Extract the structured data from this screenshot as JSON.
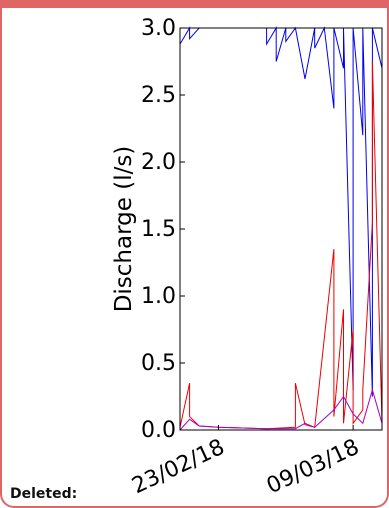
{
  "chart_data": {
    "type": "line",
    "xlabel": "",
    "ylabel": "Discharge (l/s)",
    "ylim": [
      0,
      3
    ],
    "yticks": [
      "0.0",
      "0.5",
      "1.0",
      "1.5",
      "2.0",
      "2.5",
      "3.0"
    ],
    "xticks": [
      {
        "label": "23/02/18",
        "date": "2018-02-23"
      },
      {
        "label": "09/03/18",
        "date": "2018-03-09"
      }
    ],
    "xrange": [
      "2018-02-19",
      "2018-03-12"
    ],
    "grid": false,
    "legend": "none",
    "series": [
      {
        "color": "#0000ee",
        "dates": [
          "2018-02-19",
          "2018-02-19",
          "2018-02-20",
          "2018-02-20",
          "2018-02-21",
          "2018-02-28",
          "2018-02-28",
          "2018-03-01",
          "2018-03-01",
          "2018-03-02",
          "2018-03-02",
          "2018-03-03",
          "2018-03-04",
          "2018-03-05",
          "2018-03-05",
          "2018-03-06",
          "2018-03-07",
          "2018-03-07",
          "2018-03-08",
          "2018-03-08",
          "2018-03-09",
          "2018-03-09",
          "2018-03-10",
          "2018-03-10",
          "2018-03-11",
          "2018-03-11",
          "2018-03-12",
          "2018-03-12"
        ],
        "values": [
          3.0,
          2.88,
          3.0,
          2.92,
          3.0,
          3.0,
          2.88,
          3.0,
          2.75,
          3.0,
          2.9,
          3.0,
          2.62,
          3.0,
          2.85,
          3.0,
          2.4,
          3.0,
          2.7,
          3.0,
          0.3,
          3.0,
          2.2,
          3.0,
          0.25,
          3.0,
          2.7,
          3.0
        ]
      },
      {
        "color": "#ee0000",
        "dates": [
          "2018-02-19",
          "2018-02-20",
          "2018-02-20",
          "2018-02-21",
          "2018-02-23",
          "2018-02-28",
          "2018-03-03",
          "2018-03-03",
          "2018-03-04",
          "2018-03-05",
          "2018-03-07",
          "2018-03-07",
          "2018-03-08",
          "2018-03-08",
          "2018-03-09",
          "2018-03-09",
          "2018-03-10",
          "2018-03-10",
          "2018-03-11",
          "2018-03-11",
          "2018-03-12"
        ],
        "values": [
          0.02,
          0.35,
          0.1,
          0.03,
          0.02,
          0.01,
          0.02,
          0.35,
          0.04,
          0.02,
          1.35,
          0.1,
          0.9,
          0.05,
          0.75,
          0.05,
          0.15,
          0.3,
          1.55,
          2.75,
          0.05
        ]
      },
      {
        "color": "#aa00cc",
        "dates": [
          "2018-02-19",
          "2018-02-20",
          "2018-02-21",
          "2018-02-23",
          "2018-02-28",
          "2018-03-03",
          "2018-03-04",
          "2018-03-05",
          "2018-03-07",
          "2018-03-08",
          "2018-03-09",
          "2018-03-10",
          "2018-03-11",
          "2018-03-12"
        ],
        "values": [
          0.0,
          0.08,
          0.03,
          0.02,
          0.01,
          0.01,
          0.05,
          0.02,
          0.15,
          0.25,
          0.12,
          0.05,
          0.3,
          0.05
        ]
      }
    ]
  },
  "footer": {
    "deleted_label": "Deleted:"
  }
}
